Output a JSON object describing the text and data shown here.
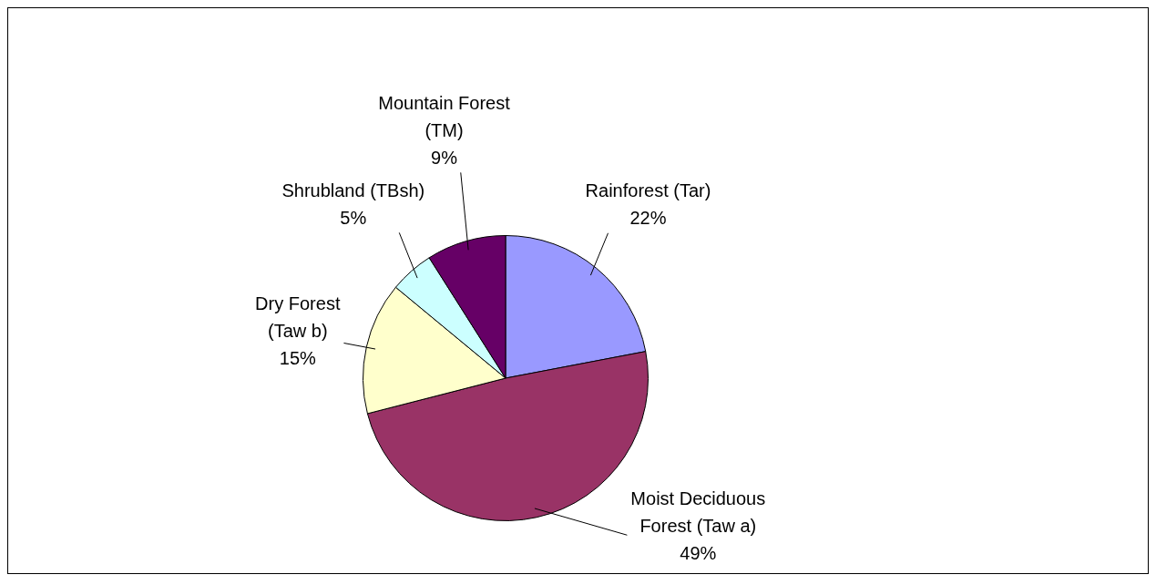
{
  "chart_data": {
    "type": "pie",
    "categories": [
      "Rainforest (Tar)",
      "Moist Deciduous Forest (Taw a)",
      "Dry Forest (Taw b)",
      "Shrubland (TBsh)",
      "Mountain Forest (TM)"
    ],
    "values": [
      22,
      49,
      15,
      5,
      9
    ],
    "value_labels": [
      "22%",
      "49%",
      "15%",
      "5%",
      "9%"
    ],
    "colors": [
      "#9999ff",
      "#993366",
      "#ffffcc",
      "#ccffff",
      "#660066"
    ],
    "legend": false
  }
}
